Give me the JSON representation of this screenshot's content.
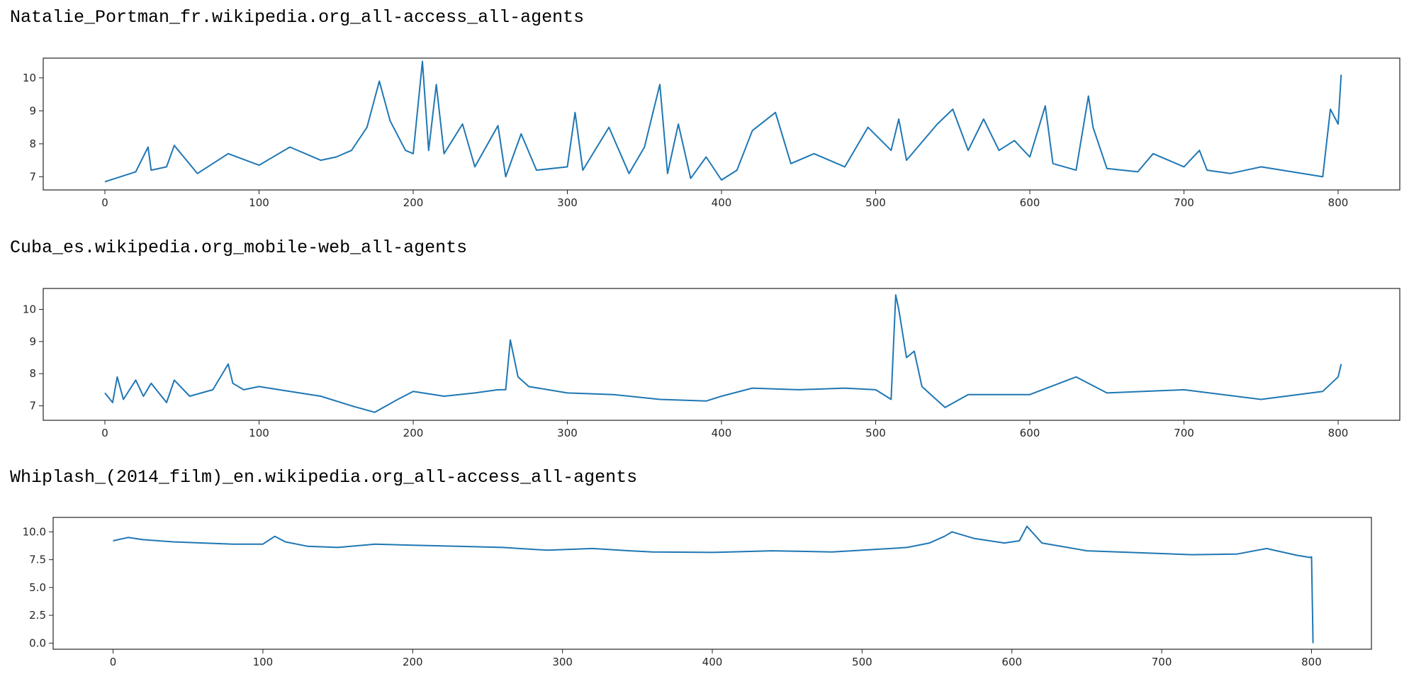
{
  "chart_data": [
    {
      "type": "line",
      "title": "Natalie_Portman_fr.wikipedia.org_all-access_all-agents",
      "color": "#1f77b4",
      "xlim": [
        -40,
        840
      ],
      "ylim": [
        6.6,
        10.6
      ],
      "xticks": [
        0,
        100,
        200,
        300,
        400,
        500,
        600,
        700,
        800
      ],
      "yticks": [
        7,
        8,
        9,
        10
      ],
      "ytick_labels": [
        "7",
        "8",
        "9",
        "10"
      ],
      "series": [
        {
          "x": [
            0,
            10,
            20,
            28,
            30,
            40,
            45,
            60,
            80,
            100,
            120,
            140,
            150,
            160,
            170,
            178,
            185,
            195,
            200,
            206,
            210,
            215,
            220,
            232,
            240,
            255,
            260,
            270,
            280,
            300,
            305,
            310,
            327,
            340,
            350,
            360,
            365,
            372,
            380,
            390,
            400,
            410,
            420,
            435,
            445,
            460,
            480,
            495,
            510,
            515,
            520,
            540,
            550,
            560,
            570,
            580,
            590,
            600,
            610,
            615,
            630,
            638,
            641,
            650,
            670,
            680,
            700,
            710,
            715,
            730,
            750,
            770,
            790,
            795,
            800,
            802
          ],
          "y": [
            6.85,
            7.0,
            7.15,
            7.9,
            7.2,
            7.3,
            7.95,
            7.1,
            7.7,
            7.35,
            7.9,
            7.5,
            7.6,
            7.8,
            8.5,
            9.9,
            8.7,
            7.8,
            7.7,
            10.5,
            7.8,
            9.8,
            7.7,
            8.6,
            7.3,
            8.55,
            7.0,
            8.3,
            7.2,
            7.3,
            8.95,
            7.2,
            8.5,
            7.1,
            7.9,
            9.8,
            7.1,
            8.6,
            6.95,
            7.6,
            6.9,
            7.2,
            8.4,
            8.95,
            7.4,
            7.7,
            7.3,
            8.5,
            7.8,
            8.75,
            7.5,
            8.6,
            9.05,
            7.8,
            8.75,
            7.8,
            8.1,
            7.6,
            9.15,
            7.4,
            7.2,
            9.45,
            8.5,
            7.25,
            7.15,
            7.7,
            7.3,
            7.8,
            7.2,
            7.1,
            7.3,
            7.15,
            7.0,
            9.05,
            8.6,
            10.1
          ]
        }
      ]
    },
    {
      "type": "line",
      "title": "Cuba_es.wikipedia.org_mobile-web_all-agents",
      "color": "#1f77b4",
      "xlim": [
        -40,
        840
      ],
      "ylim": [
        6.55,
        10.65
      ],
      "xticks": [
        0,
        100,
        200,
        300,
        400,
        500,
        600,
        700,
        800
      ],
      "yticks": [
        7,
        8,
        9,
        10
      ],
      "ytick_labels": [
        "7",
        "8",
        "9",
        "10"
      ],
      "series": [
        {
          "x": [
            0,
            5,
            8,
            12,
            20,
            25,
            30,
            40,
            45,
            55,
            70,
            80,
            83,
            90,
            100,
            120,
            140,
            160,
            175,
            190,
            200,
            220,
            240,
            255,
            260,
            263,
            268,
            275,
            300,
            330,
            360,
            390,
            400,
            420,
            450,
            480,
            500,
            510,
            513,
            515,
            520,
            525,
            530,
            545,
            560,
            600,
            630,
            650,
            700,
            750,
            790,
            800,
            802
          ],
          "y": [
            7.4,
            7.1,
            7.9,
            7.2,
            7.8,
            7.3,
            7.7,
            7.1,
            7.8,
            7.3,
            7.5,
            8.3,
            7.7,
            7.5,
            7.6,
            7.45,
            7.3,
            7.0,
            6.8,
            7.2,
            7.45,
            7.3,
            7.4,
            7.5,
            7.5,
            9.05,
            7.9,
            7.6,
            7.4,
            7.35,
            7.2,
            7.15,
            7.3,
            7.55,
            7.5,
            7.55,
            7.5,
            7.2,
            10.45,
            10.0,
            8.5,
            8.7,
            7.6,
            6.95,
            7.35,
            7.35,
            7.9,
            7.4,
            7.5,
            7.2,
            7.45,
            7.9,
            8.3
          ]
        }
      ]
    },
    {
      "type": "line",
      "title": "Whiplash_(2014_film)_en.wikipedia.org_all-access_all-agents",
      "color": "#1f77b4",
      "xlim": [
        -40,
        840
      ],
      "ylim": [
        -0.55,
        11.3
      ],
      "xticks": [
        0,
        100,
        200,
        300,
        400,
        500,
        600,
        700,
        800
      ],
      "yticks": [
        0,
        2.5,
        5,
        7.5,
        10
      ],
      "ytick_labels": [
        "0.0",
        "2.5",
        "5.0",
        "7.5",
        "10.0"
      ],
      "series": [
        {
          "x": [
            0,
            10,
            20,
            40,
            60,
            80,
            100,
            108,
            115,
            130,
            150,
            175,
            200,
            230,
            260,
            290,
            320,
            345,
            360,
            400,
            440,
            480,
            500,
            530,
            545,
            555,
            560,
            575,
            595,
            605,
            610,
            620,
            650,
            690,
            720,
            750,
            770,
            790,
            799,
            800,
            801
          ],
          "y": [
            9.2,
            9.5,
            9.3,
            9.1,
            9.0,
            8.9,
            8.9,
            9.6,
            9.1,
            8.7,
            8.6,
            8.9,
            8.8,
            8.7,
            8.6,
            8.35,
            8.5,
            8.3,
            8.2,
            8.15,
            8.3,
            8.2,
            8.35,
            8.6,
            9.0,
            9.6,
            10.0,
            9.4,
            9.0,
            9.2,
            10.5,
            9.0,
            8.3,
            8.1,
            7.95,
            8.0,
            8.5,
            7.9,
            7.7,
            7.75,
            0.0
          ]
        }
      ]
    }
  ]
}
